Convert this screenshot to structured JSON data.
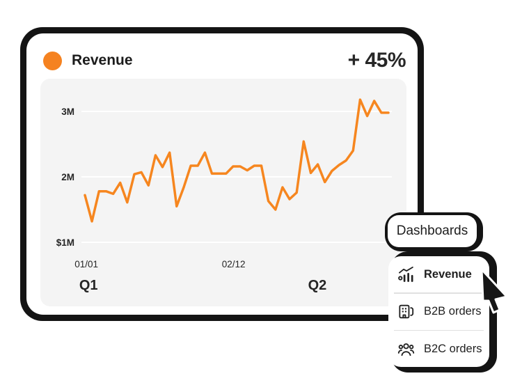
{
  "card": {
    "title": "Revenue",
    "delta": "+ 45%",
    "accent_color": "#F58220",
    "ink_color": "#141414"
  },
  "chart_data": {
    "type": "line",
    "title": "Revenue",
    "grid": "horizontal",
    "panel_bg": "#f4f4f4",
    "gridline_color": "#ffffff",
    "ylim": [
      1,
      3.3
    ],
    "y_unit": "millions",
    "series": [
      {
        "name": "Revenue",
        "color": "#F6861F",
        "values_millions": [
          1.72,
          1.32,
          1.78,
          1.78,
          1.74,
          1.91,
          1.61,
          2.04,
          2.07,
          1.87,
          2.33,
          2.15,
          2.37,
          1.55,
          1.84,
          2.17,
          2.17,
          2.37,
          2.05,
          2.05,
          2.05,
          2.16,
          2.16,
          2.1,
          2.17,
          2.17,
          1.63,
          1.5,
          1.84,
          1.66,
          1.76,
          2.54,
          2.06,
          2.19,
          1.92,
          2.09,
          2.18,
          2.25,
          2.4,
          3.18,
          2.93,
          3.16,
          2.98,
          2.98
        ]
      }
    ],
    "y_ticks": [
      {
        "label": "3M",
        "value": 3
      },
      {
        "label": "2M",
        "value": 2
      },
      {
        "label": "$1M",
        "value": 1
      }
    ],
    "x_ticks": [
      {
        "label": "01/01",
        "pos": 0.005
      },
      {
        "label": "02/12",
        "pos": 0.49
      }
    ],
    "quarter_labels": [
      {
        "label": "Q1",
        "pos": 0.012
      },
      {
        "label": "Q2",
        "pos": 0.766
      }
    ]
  },
  "dashboards_button": {
    "label": "Dashboards"
  },
  "menu": {
    "items": [
      {
        "label": "Revenue",
        "icon": "bar-chart-trend-icon",
        "active": true
      },
      {
        "label": "B2B orders",
        "icon": "building-icon",
        "active": false
      },
      {
        "label": "B2C orders",
        "icon": "people-group-icon",
        "active": false
      }
    ]
  }
}
